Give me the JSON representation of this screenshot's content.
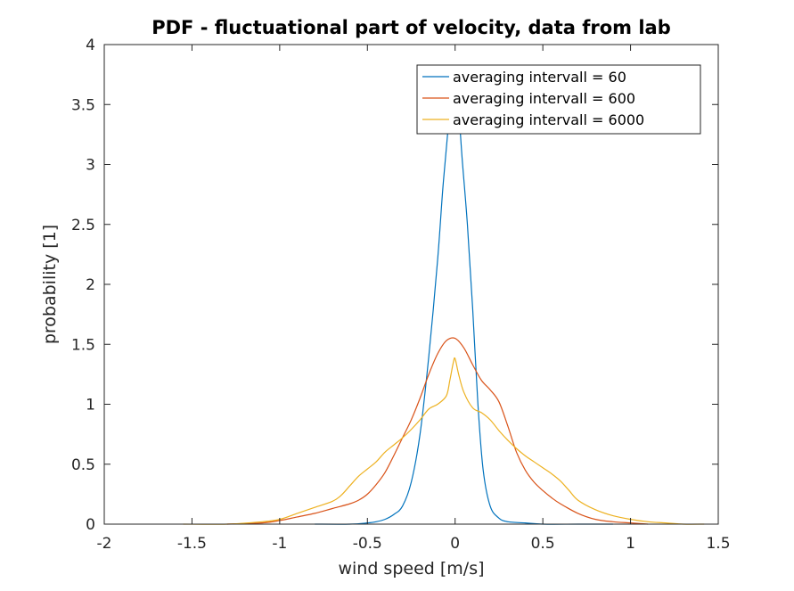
{
  "chart_data": {
    "type": "line",
    "title": "PDF - fluctuational part of velocity, data from lab",
    "xlabel": "wind speed [m/s]",
    "ylabel": "probability [1]",
    "xlim": [
      -2,
      1.5
    ],
    "ylim": [
      0,
      4
    ],
    "xticks": [
      -2,
      -1.5,
      -1,
      -0.5,
      0,
      0.5,
      1,
      1.5
    ],
    "yticks": [
      0,
      0.5,
      1,
      1.5,
      2,
      2.5,
      3,
      3.5,
      4
    ],
    "xtick_labels": [
      "-2",
      "-1.5",
      "-1",
      "-0.5",
      "0",
      "0.5",
      "1",
      "1.5"
    ],
    "ytick_labels": [
      "0",
      "0.5",
      "1",
      "1.5",
      "2",
      "2.5",
      "3",
      "3.5",
      "4"
    ],
    "grid": false,
    "legend_position": "top-right",
    "series": [
      {
        "name": "averaging intervall = 60",
        "color": "#0072BD",
        "x": [
          -0.8,
          -0.6,
          -0.5,
          -0.45,
          -0.4,
          -0.35,
          -0.3,
          -0.25,
          -0.2,
          -0.15,
          -0.1,
          -0.07,
          -0.04,
          -0.02,
          0.0,
          0.02,
          0.04,
          0.07,
          0.1,
          0.13,
          0.16,
          0.2,
          0.25,
          0.3,
          0.4,
          0.5,
          0.7,
          0.9
        ],
        "values": [
          0.0,
          0.0,
          0.01,
          0.02,
          0.04,
          0.08,
          0.15,
          0.35,
          0.75,
          1.4,
          2.2,
          2.8,
          3.3,
          3.55,
          3.6,
          3.45,
          3.05,
          2.5,
          1.8,
          1.0,
          0.45,
          0.15,
          0.05,
          0.02,
          0.01,
          0.0,
          0.0,
          0.0
        ]
      },
      {
        "name": "averaging intervall = 600",
        "color": "#D95319",
        "x": [
          -1.3,
          -1.1,
          -1.0,
          -0.9,
          -0.8,
          -0.7,
          -0.6,
          -0.55,
          -0.5,
          -0.45,
          -0.4,
          -0.35,
          -0.3,
          -0.25,
          -0.2,
          -0.15,
          -0.1,
          -0.05,
          0.0,
          0.05,
          0.1,
          0.15,
          0.2,
          0.25,
          0.3,
          0.35,
          0.4,
          0.45,
          0.5,
          0.55,
          0.6,
          0.7,
          0.8,
          0.9,
          1.0,
          1.1
        ],
        "values": [
          0.0,
          0.01,
          0.03,
          0.06,
          0.09,
          0.13,
          0.17,
          0.2,
          0.25,
          0.33,
          0.43,
          0.57,
          0.72,
          0.87,
          1.05,
          1.25,
          1.42,
          1.53,
          1.55,
          1.47,
          1.33,
          1.2,
          1.12,
          1.02,
          0.82,
          0.6,
          0.45,
          0.35,
          0.28,
          0.22,
          0.17,
          0.09,
          0.04,
          0.02,
          0.01,
          0.0
        ]
      },
      {
        "name": "averaging intervall = 6000",
        "color": "#EDB120",
        "x": [
          -1.55,
          -1.3,
          -1.1,
          -1.0,
          -0.9,
          -0.8,
          -0.7,
          -0.65,
          -0.6,
          -0.55,
          -0.5,
          -0.45,
          -0.4,
          -0.35,
          -0.3,
          -0.25,
          -0.2,
          -0.15,
          -0.1,
          -0.05,
          -0.03,
          -0.01,
          0.0,
          0.02,
          0.05,
          0.1,
          0.15,
          0.2,
          0.25,
          0.3,
          0.35,
          0.4,
          0.45,
          0.5,
          0.55,
          0.6,
          0.65,
          0.7,
          0.8,
          0.9,
          1.0,
          1.1,
          1.2,
          1.3,
          1.42
        ],
        "values": [
          0.0,
          0.0,
          0.02,
          0.04,
          0.09,
          0.14,
          0.19,
          0.24,
          0.32,
          0.4,
          0.46,
          0.52,
          0.6,
          0.66,
          0.72,
          0.79,
          0.87,
          0.96,
          1.0,
          1.07,
          1.2,
          1.35,
          1.38,
          1.25,
          1.1,
          0.97,
          0.93,
          0.87,
          0.78,
          0.7,
          0.63,
          0.57,
          0.52,
          0.47,
          0.42,
          0.36,
          0.28,
          0.2,
          0.12,
          0.07,
          0.04,
          0.02,
          0.01,
          0.0,
          0.0
        ]
      }
    ]
  }
}
